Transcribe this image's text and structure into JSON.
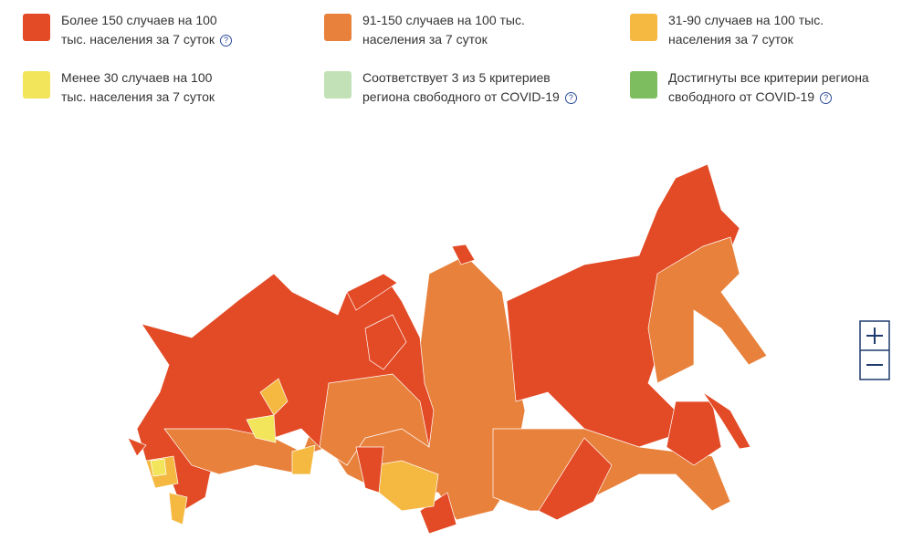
{
  "legend": [
    {
      "color": "#e34a26",
      "label": "Более 150 случаев на 100 тыс. населения за 7 суток",
      "help": "?"
    },
    {
      "color": "#e8813b",
      "label": "91-150 случаев на 100 тыс. населения за 7 суток"
    },
    {
      "color": "#f5b942",
      "label": "31-90 случаев на 100 тыс. населения за 7 суток"
    },
    {
      "color": "#f2e55c",
      "label": "Менее 30 случаев на 100 тыс. населения за 7 суток"
    },
    {
      "color": "#c3e1b6",
      "label": "Соответствует 3 из 5 критериев региона свободного от COVID-19",
      "help": "?"
    },
    {
      "color": "#7dbd5f",
      "label": "Достигнуты все критерии региона свободного от COVID-19",
      "help": "?"
    }
  ]
}
